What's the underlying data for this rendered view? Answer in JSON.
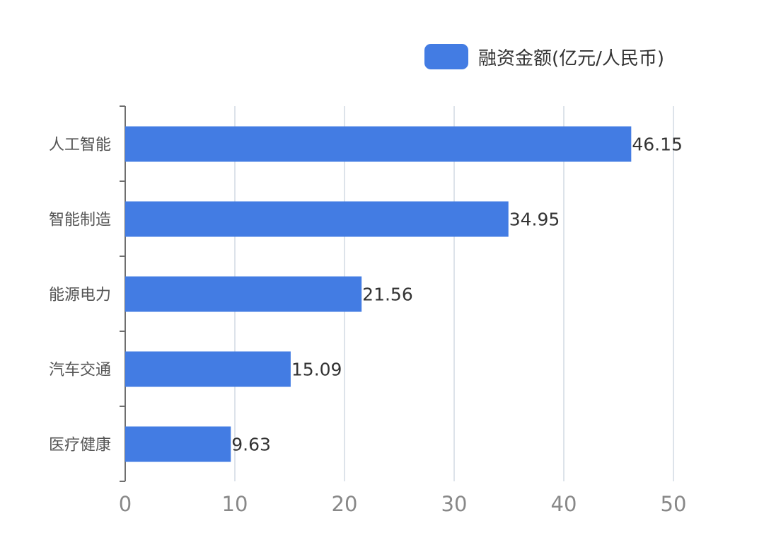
{
  "legend": {
    "label": "融资金额(亿元/人民币)",
    "color": "#437ce3"
  },
  "colors": {
    "bar": "#437ce3",
    "axis": "#6f6f6f",
    "grid": "#dde3ea",
    "tick_label": "#888888",
    "category_label": "#555555",
    "value_label": "#333333"
  },
  "chart_data": {
    "type": "bar",
    "orientation": "horizontal",
    "categories": [
      "人工智能",
      "智能制造",
      "能源电力",
      "汽车交通",
      "医疗健康"
    ],
    "series": [
      {
        "name": "融资金额(亿元/人民币)",
        "values": [
          46.15,
          34.95,
          21.56,
          15.09,
          9.63
        ]
      }
    ],
    "value_labels": [
      "46.15",
      "34.95",
      "21.56",
      "15.09",
      "9.63"
    ],
    "xlim": [
      0,
      50
    ],
    "xticks": [
      "0",
      "10",
      "20",
      "30",
      "40",
      "50"
    ],
    "grid": true,
    "legend_position": "top-right",
    "title": "",
    "xlabel": "",
    "ylabel": ""
  }
}
